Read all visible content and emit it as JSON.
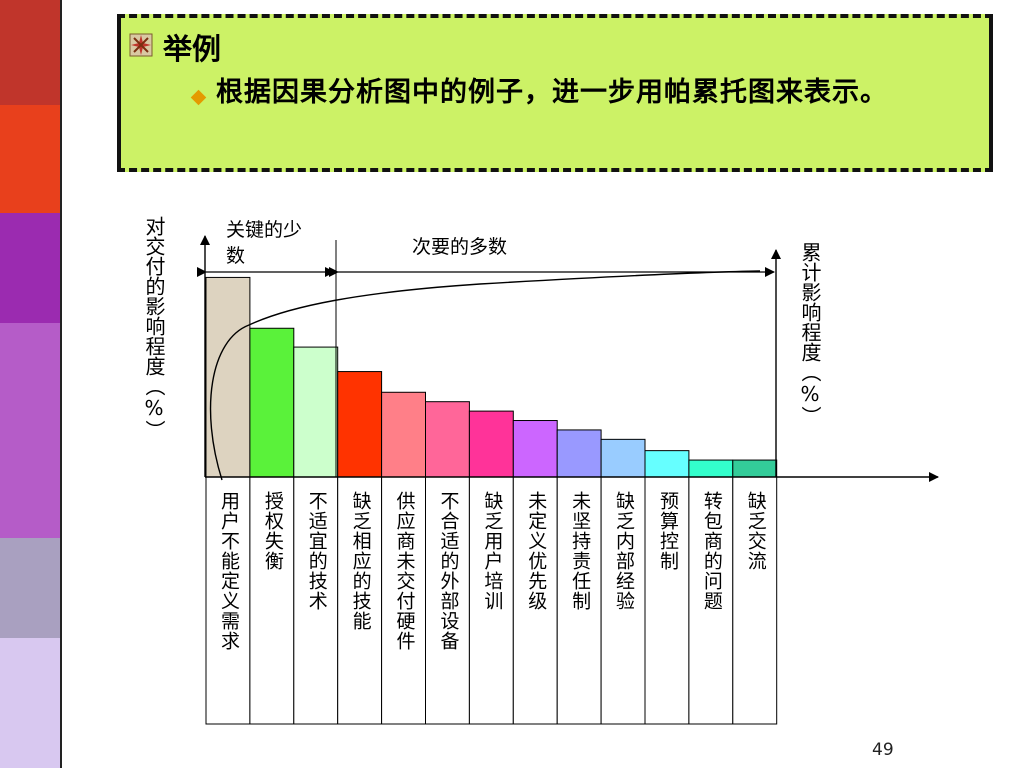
{
  "slide": {
    "heading": "举例",
    "bullet": "根据因果分析图中的例子，进一步用帕累托图来表示。",
    "page_number": "49",
    "stripe_colors": [
      "#c0352b",
      "#e8401c",
      "#9b2bb0",
      "#b55cc8",
      "#a9a0c0",
      "#d8c8f0"
    ],
    "banner_color": "#ccf266"
  },
  "chart_data": {
    "type": "bar",
    "ylabel_left": "对交付的影响程度（%）",
    "ylabel_right": "累计影响程度（%）",
    "annotation_vital": "关键的少数",
    "annotation_trivial": "次要的多数",
    "categories": [
      "用户不能定义需求",
      "授权失衡",
      "不适宜的技术",
      "缺乏相应的技能",
      "供应商未交付硬件",
      "不合适的外部设备",
      "缺乏用户培训",
      "未定义优先级",
      "未坚持责任制",
      "缺乏内部经验",
      "预算控制",
      "转包商的问题",
      "缺乏交流"
    ],
    "values": [
      10.6,
      7.9,
      6.9,
      5.6,
      4.5,
      4.0,
      3.5,
      3.0,
      2.5,
      2.0,
      1.4,
      0.9,
      0.9
    ],
    "bar_colors": [
      "#ddd3c0",
      "#5af23a",
      "#ccffcc",
      "#ff3300",
      "#ff7f88",
      "#ff6699",
      "#ff3399",
      "#cc66ff",
      "#9999ff",
      "#99ccff",
      "#66ffff",
      "#33ffcc",
      "#33cc99"
    ],
    "cumulative_curve": true,
    "grid": false,
    "legend": "none"
  }
}
